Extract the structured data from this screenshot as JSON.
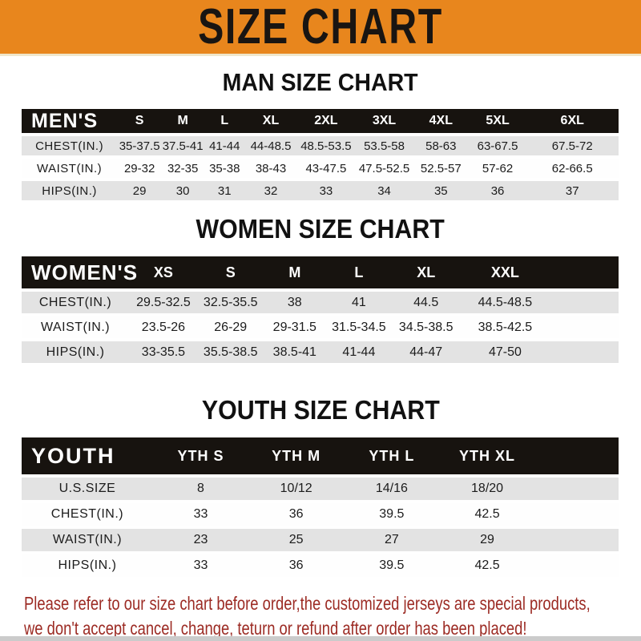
{
  "banner": {
    "title": "SIZE CHART",
    "bg_color": "#E8861D"
  },
  "sections": [
    {
      "title": "MAN SIZE CHART",
      "table": {
        "label": "MEN'S",
        "columns": [
          "S",
          "M",
          "L",
          "XL",
          "2XL",
          "3XL",
          "4XL",
          "5XL",
          "6XL"
        ],
        "rows": [
          {
            "label": "CHEST(IN.)",
            "values": [
              "35-37.5",
              "37.5-41",
              "41-44",
              "44-48.5",
              "48.5-53.5",
              "53.5-58",
              "58-63",
              "63-67.5",
              "67.5-72"
            ]
          },
          {
            "label": "WAIST(IN.)",
            "values": [
              "29-32",
              "32-35",
              "35-38",
              "38-43",
              "43-47.5",
              "47.5-52.5",
              "52.5-57",
              "57-62",
              "62-66.5"
            ]
          },
          {
            "label": "HIPS(IN.)",
            "values": [
              "29",
              "30",
              "31",
              "32",
              "33",
              "34",
              "35",
              "36",
              "37"
            ]
          }
        ]
      }
    },
    {
      "title": "WOMEN SIZE CHART",
      "table": {
        "label": "WOMEN'S",
        "columns": [
          "XS",
          "S",
          "M",
          "L",
          "XL",
          "XXL"
        ],
        "rows": [
          {
            "label": "CHEST(IN.)",
            "values": [
              "29.5-32.5",
              "32.5-35.5",
              "38",
              "41",
              "44.5",
              "44.5-48.5"
            ]
          },
          {
            "label": "WAIST(IN.)",
            "values": [
              "23.5-26",
              "26-29",
              "29-31.5",
              "31.5-34.5",
              "34.5-38.5",
              "38.5-42.5"
            ]
          },
          {
            "label": "HIPS(IN.)",
            "values": [
              "33-35.5",
              "35.5-38.5",
              "38.5-41",
              "41-44",
              "44-47",
              "47-50"
            ]
          }
        ]
      }
    },
    {
      "title": "YOUTH SIZE CHART",
      "table": {
        "label": "YOUTH",
        "columns": [
          "YTH S",
          "YTH M",
          "YTH L",
          "YTH XL"
        ],
        "rows": [
          {
            "label": "U.S.SIZE",
            "values": [
              "8",
              "10/12",
              "14/16",
              "18/20"
            ]
          },
          {
            "label": "CHEST(IN.)",
            "values": [
              "33",
              "36",
              "39.5",
              "42.5"
            ]
          },
          {
            "label": "WAIST(IN.)",
            "values": [
              "23",
              "25",
              "27",
              "29"
            ]
          },
          {
            "label": "HIPS(IN.)",
            "values": [
              "33",
              "36",
              "39.5",
              "42.5"
            ]
          }
        ]
      }
    }
  ],
  "disclaimer": {
    "line1": "Please refer to our size chart before order,the customized jerseys are special products,",
    "line2": "we don't accept cancel, change, teturn or refund after order has been placed!",
    "color": "#9C2B24"
  }
}
